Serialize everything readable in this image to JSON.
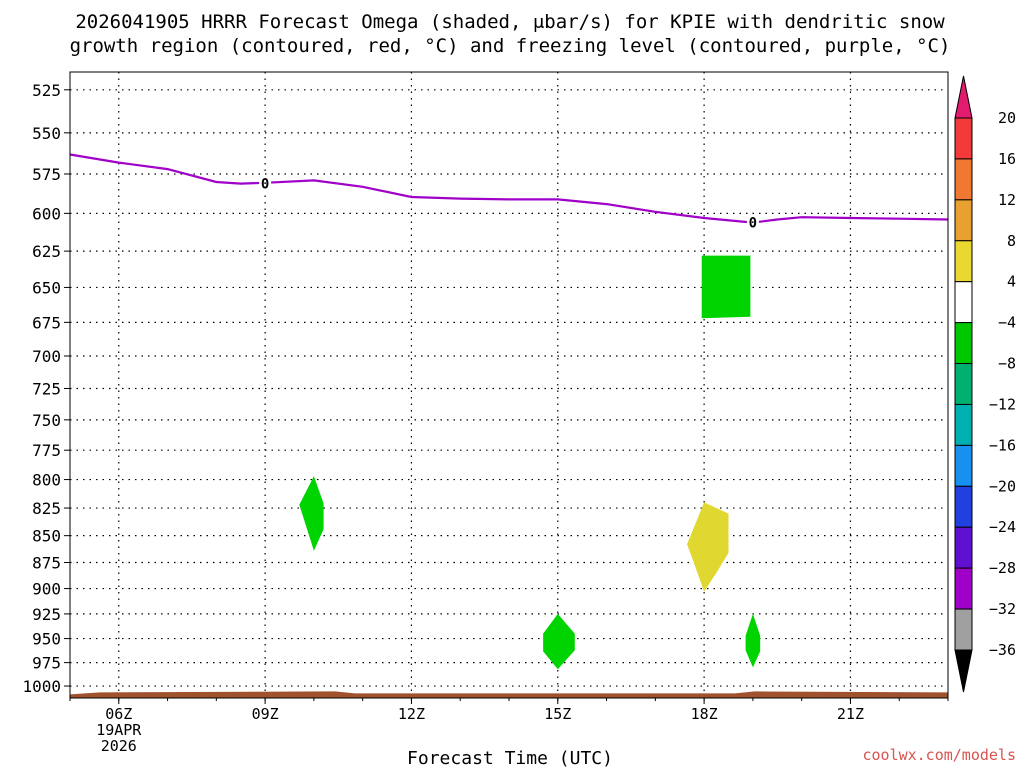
{
  "chart_data": {
    "type": "contour",
    "title": [
      "2026041905 HRRR Forecast Omega (shaded, μbar/s) for KPIE with dendritic snow",
      "growth region (contoured, red, °C) and freezing level (contoured, purple, °C)"
    ],
    "xlabel": "Forecast Time (UTC)",
    "x_ticks": [
      {
        "hour": 6,
        "label": "06Z",
        "sublabels": [
          "19APR",
          "2026"
        ]
      },
      {
        "hour": 9,
        "label": "09Z",
        "sublabels": []
      },
      {
        "hour": 12,
        "label": "12Z",
        "sublabels": []
      },
      {
        "hour": 15,
        "label": "15Z",
        "sublabels": []
      },
      {
        "hour": 18,
        "label": "18Z",
        "sublabels": []
      },
      {
        "hour": 21,
        "label": "21Z",
        "sublabels": []
      }
    ],
    "xlim": [
      5,
      23
    ],
    "y_ticks": [
      "525",
      "550",
      "575",
      "600",
      "625",
      "650",
      "675",
      "700",
      "725",
      "750",
      "775",
      "800",
      "825",
      "850",
      "875",
      "900",
      "925",
      "950",
      "975",
      "1000"
    ],
    "y_axis": "pressure (hPa), log scale, inverted",
    "ylim": [
      515,
      1013
    ],
    "grid": true,
    "freezing_level": {
      "color": "#a000c8",
      "label": "0",
      "label_points": [
        [
          9.0,
          581
        ],
        [
          19.0,
          606
        ]
      ],
      "points": [
        [
          5.0,
          563
        ],
        [
          6.0,
          568
        ],
        [
          7.0,
          572
        ],
        [
          8.0,
          580
        ],
        [
          8.5,
          581
        ],
        [
          9.0,
          580.5
        ],
        [
          10.0,
          579
        ],
        [
          11.0,
          583
        ],
        [
          12.0,
          589.5
        ],
        [
          13.0,
          590.5
        ],
        [
          14.0,
          591
        ],
        [
          15.0,
          591
        ],
        [
          16.0,
          594
        ],
        [
          17.0,
          599
        ],
        [
          18.0,
          603
        ],
        [
          19.0,
          606
        ],
        [
          19.5,
          604
        ],
        [
          20.0,
          602.5
        ],
        [
          21.0,
          603
        ],
        [
          22.0,
          603.5
        ],
        [
          23.0,
          604
        ]
      ]
    },
    "omega_regions": [
      {
        "category": "-8 to -4",
        "color": "#00d400",
        "points": [
          [
            17.95,
            628
          ],
          [
            18.95,
            628
          ],
          [
            18.95,
            671
          ],
          [
            17.95,
            672
          ]
        ]
      },
      {
        "category": "-8 to -4",
        "color": "#00d400",
        "points": [
          [
            10.0,
            797
          ],
          [
            10.2,
            821
          ],
          [
            10.2,
            844
          ],
          [
            10.0,
            864
          ],
          [
            9.7,
            822
          ]
        ]
      },
      {
        "category": "4 to 8",
        "color": "#e0d830",
        "points": [
          [
            18.0,
            820
          ],
          [
            18.25,
            825
          ],
          [
            18.5,
            830
          ],
          [
            18.5,
            866
          ],
          [
            18.25,
            885
          ],
          [
            18.0,
            903
          ],
          [
            17.75,
            870
          ],
          [
            17.65,
            858
          ]
        ]
      },
      {
        "category": "-8 to -4",
        "color": "#00d400",
        "points": [
          [
            15.0,
            925
          ],
          [
            15.35,
            945
          ],
          [
            15.35,
            962
          ],
          [
            15.0,
            982
          ],
          [
            14.7,
            963
          ],
          [
            14.7,
            945
          ]
        ]
      },
      {
        "category": "-8 to -4",
        "color": "#00d400",
        "points": [
          [
            19.0,
            925
          ],
          [
            19.15,
            947
          ],
          [
            19.15,
            963
          ],
          [
            19.0,
            980
          ],
          [
            18.85,
            962
          ],
          [
            18.85,
            947
          ]
        ]
      }
    ],
    "terrain": {
      "color": "#a0522d",
      "label": "surface"
    },
    "colorbar": {
      "labels": [
        "20",
        "16",
        "12",
        "8",
        "4",
        "−4",
        "−8",
        "−12",
        "−16",
        "−20",
        "−24",
        "−28",
        "−32",
        "−36"
      ],
      "colors": [
        "#e21b6e",
        "#f23a3a",
        "#f07830",
        "#e8a030",
        "#e8d830",
        "#ffffff",
        "#00c800",
        "#00b070",
        "#00b0b0",
        "#1890f0",
        "#2040e0",
        "#6010d0",
        "#a000c8",
        "#a0a0a0",
        "#000000"
      ]
    }
  },
  "credit": "coolwx.com/models"
}
